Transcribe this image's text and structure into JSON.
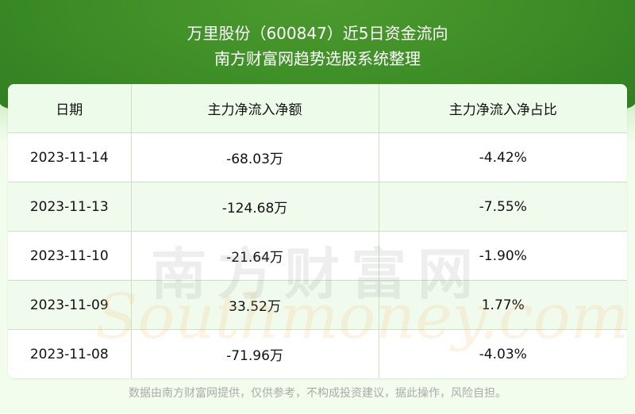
{
  "header": {
    "title": "万里股份（600847）近5日资金流向",
    "subtitle": "南方财富网趋势选股系统整理"
  },
  "table": {
    "columns": [
      "日期",
      "主力净流入净额",
      "主力净流入净占比"
    ],
    "rows": [
      [
        "2023-11-14",
        "-68.03万",
        "-4.42%"
      ],
      [
        "2023-11-13",
        "-124.68万",
        "-7.55%"
      ],
      [
        "2023-11-10",
        "-21.64万",
        "-1.90%"
      ],
      [
        "2023-11-09",
        "33.52万",
        "1.77%"
      ],
      [
        "2023-11-08",
        "-71.96万",
        "-4.03%"
      ]
    ]
  },
  "watermark": {
    "cn": "南方财富网",
    "en": "Southmoney.com"
  },
  "footer": "数据由南方财富网提供，仅供参考，不构成投资建议，据此操作，风险自担。",
  "colors": {
    "banner": "#3f8f28",
    "header_row": "#edfbea",
    "alt_row": "#effaea"
  }
}
